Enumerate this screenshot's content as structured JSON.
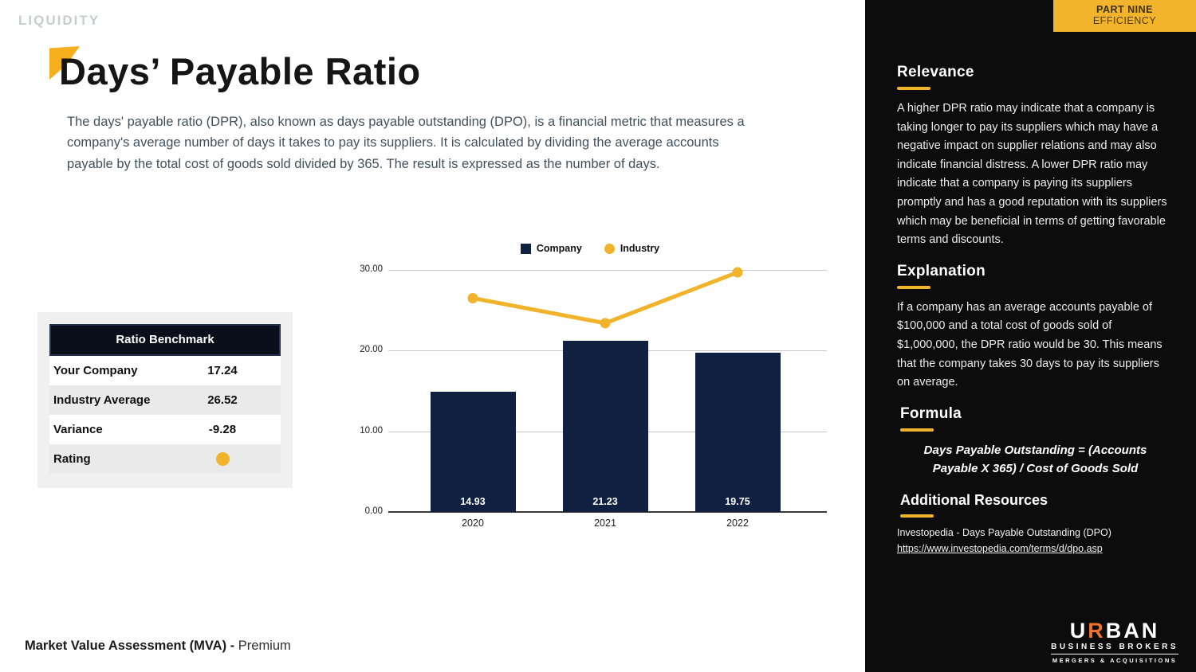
{
  "page": {
    "eyebrow": "LIQUIDITY",
    "title": "Days’ Payable Ratio",
    "description": "The days' payable ratio (DPR), also known as days payable outstanding (DPO), is a financial metric that measures a company's average number of days it takes to pay its suppliers. It is calculated by dividing the average accounts payable by the total cost of goods sold divided by 365. The result is expressed as the number of days.",
    "footer_bold": "Market Value Assessment (MVA) -",
    "footer_regular": "Premium"
  },
  "benchmark_table": {
    "header": "Ratio Benchmark",
    "rows": [
      {
        "label": "Your Company",
        "value": "17.24"
      },
      {
        "label": "Industry Average",
        "value": "26.52"
      },
      {
        "label": "Variance",
        "value": "-9.28"
      },
      {
        "label": "Rating",
        "value": "",
        "indicator": "yellow-dot"
      }
    ]
  },
  "chart_data": {
    "type": "bar",
    "title": "",
    "categories": [
      "2020",
      "2021",
      "2022"
    ],
    "series": [
      {
        "name": "Company",
        "type": "bar",
        "color": "#0f2040",
        "values": [
          14.93,
          21.23,
          19.75
        ]
      },
      {
        "name": "Industry",
        "type": "line",
        "color": "#f2b32c",
        "values": [
          26.5,
          23.4,
          29.7
        ]
      }
    ],
    "bar_labels": [
      "14.93",
      "21.23",
      "19.75"
    ],
    "y_ticks": [
      {
        "label": "30.00",
        "value": 30
      },
      {
        "label": "20.00",
        "value": 20
      },
      {
        "label": "10.00",
        "value": 10
      },
      {
        "label": "0.00",
        "value": 0
      }
    ],
    "ylim": [
      0,
      30
    ],
    "grid": true,
    "legend_position": "top-center"
  },
  "sidebar": {
    "badge": {
      "line1": "PART NINE",
      "line2": "EFFICIENCY"
    },
    "sections": [
      {
        "heading": "Relevance",
        "body": "A higher DPR ratio may indicate that a company is taking longer to pay its suppliers which may have a negative impact on supplier relations and may also indicate financial distress. A lower DPR ratio may indicate that a company is paying its suppliers promptly and has a good reputation with its suppliers which may be beneficial in terms of getting favorable terms and discounts."
      },
      {
        "heading": "Explanation",
        "body": "If a company has an average accounts payable of $100,000 and a total cost of goods sold of $1,000,000, the DPR ratio would be 30. This means that the company takes 30 days to pay its suppliers on average."
      },
      {
        "heading": "Formula",
        "body": "Days Payable Outstanding = (Accounts Payable X 365) / Cost of Goods Sold"
      }
    ],
    "resources": {
      "heading": "Additional Resources",
      "source": "Investopedia - Days Payable Outstanding (DPO)",
      "link": "https://www.investopedia.com/terms/d/dpo.asp"
    },
    "logo": {
      "brand_left": "U",
      "brand_r": "R",
      "brand_right": "BAN",
      "sub": "BUSINESS BROKERS",
      "tagline": "MERGERS & ACQUISITIONS"
    }
  },
  "colors": {
    "accent_yellow": "#f2b32c",
    "bar_navy": "#0f2040",
    "sidebar_black": "#0c0c0c",
    "slate_text": "#41505d",
    "logo_orange": "#f0722a"
  }
}
